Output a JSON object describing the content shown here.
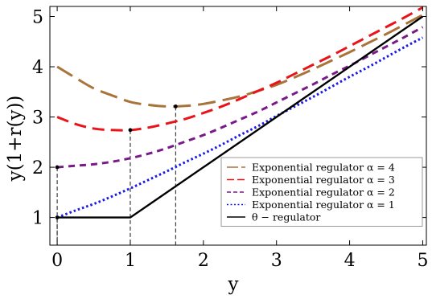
{
  "chart_data": {
    "type": "line",
    "xlabel": "y",
    "ylabel": "y(1+r(y))",
    "xlim": [
      -0.1,
      5.05
    ],
    "ylim": [
      0.45,
      5.2
    ],
    "x_ticks": [
      "0",
      "1",
      "2",
      "3",
      "4",
      "5"
    ],
    "y_ticks": [
      "1",
      "2",
      "3",
      "4",
      "5"
    ],
    "legend_position": "bottom-right",
    "series": [
      {
        "name": "Exponential regulator α = 4",
        "alpha": 4,
        "color": "#a8743a",
        "dash": "long-dash",
        "x": [
          0,
          0.25,
          0.5,
          0.75,
          1,
          1.25,
          1.5,
          1.75,
          2,
          2.25,
          2.5,
          2.75,
          3,
          3.25,
          3.5,
          3.75,
          4,
          4.25,
          4.5,
          4.75,
          5
        ],
        "y": [
          4.0,
          3.78,
          3.57,
          3.43,
          3.3,
          3.24,
          3.21,
          3.22,
          3.26,
          3.33,
          3.41,
          3.52,
          3.64,
          3.79,
          3.95,
          4.12,
          4.29,
          4.47,
          4.65,
          4.84,
          5.03
        ]
      },
      {
        "name": "Exponential regulator α = 3",
        "alpha": 3,
        "color": "#e8141a",
        "dash": "dash",
        "x": [
          0,
          0.25,
          0.5,
          0.75,
          1,
          1.25,
          1.5,
          1.75,
          2,
          2.25,
          2.5,
          2.75,
          3,
          3.25,
          3.5,
          3.75,
          4,
          4.25,
          4.5,
          4.75,
          5
        ],
        "y": [
          3.0,
          2.86,
          2.77,
          2.74,
          2.74,
          2.79,
          2.87,
          2.96,
          3.08,
          3.21,
          3.36,
          3.52,
          3.68,
          3.86,
          4.04,
          4.22,
          4.41,
          4.6,
          4.79,
          4.98,
          5.18
        ]
      },
      {
        "name": "Exponential regulator α = 2",
        "alpha": 2,
        "color": "#7a1a8a",
        "dash": "short-dash",
        "x": [
          0,
          0.25,
          0.5,
          0.75,
          1,
          1.25,
          1.5,
          1.75,
          2,
          2.25,
          2.5,
          2.75,
          3,
          3.25,
          3.5,
          3.75,
          4,
          4.25,
          4.5,
          4.75,
          5
        ],
        "y": [
          2.0,
          2.03,
          2.06,
          2.11,
          2.18,
          2.27,
          2.38,
          2.51,
          2.64,
          2.79,
          2.95,
          3.11,
          3.29,
          3.47,
          3.65,
          3.84,
          4.02,
          4.21,
          4.4,
          4.59,
          4.79
        ]
      },
      {
        "name": "Exponential regulator α = 1",
        "alpha": 1,
        "color": "#1a1ae6",
        "dash": "dot",
        "x": [
          0,
          0.25,
          0.5,
          0.75,
          1,
          1.25,
          1.5,
          1.75,
          2,
          2.25,
          2.5,
          2.75,
          3,
          3.25,
          3.5,
          3.75,
          4,
          4.25,
          4.5,
          4.75,
          5
        ],
        "y": [
          1.0,
          1.14,
          1.27,
          1.42,
          1.58,
          1.75,
          1.92,
          2.1,
          2.27,
          2.45,
          2.64,
          2.82,
          3.02,
          3.21,
          3.4,
          3.6,
          3.8,
          3.99,
          4.19,
          4.39,
          4.58
        ]
      },
      {
        "name": "θ − regulator",
        "color": "#000000",
        "dash": "solid",
        "x": [
          0,
          1,
          5
        ],
        "y": [
          1,
          1,
          5
        ]
      }
    ],
    "minima": [
      {
        "x": 0,
        "y": 1
      },
      {
        "x": 0,
        "y": 2
      },
      {
        "x": 1,
        "y": 2.74
      },
      {
        "x": 1.62,
        "y": 3.21
      }
    ]
  }
}
